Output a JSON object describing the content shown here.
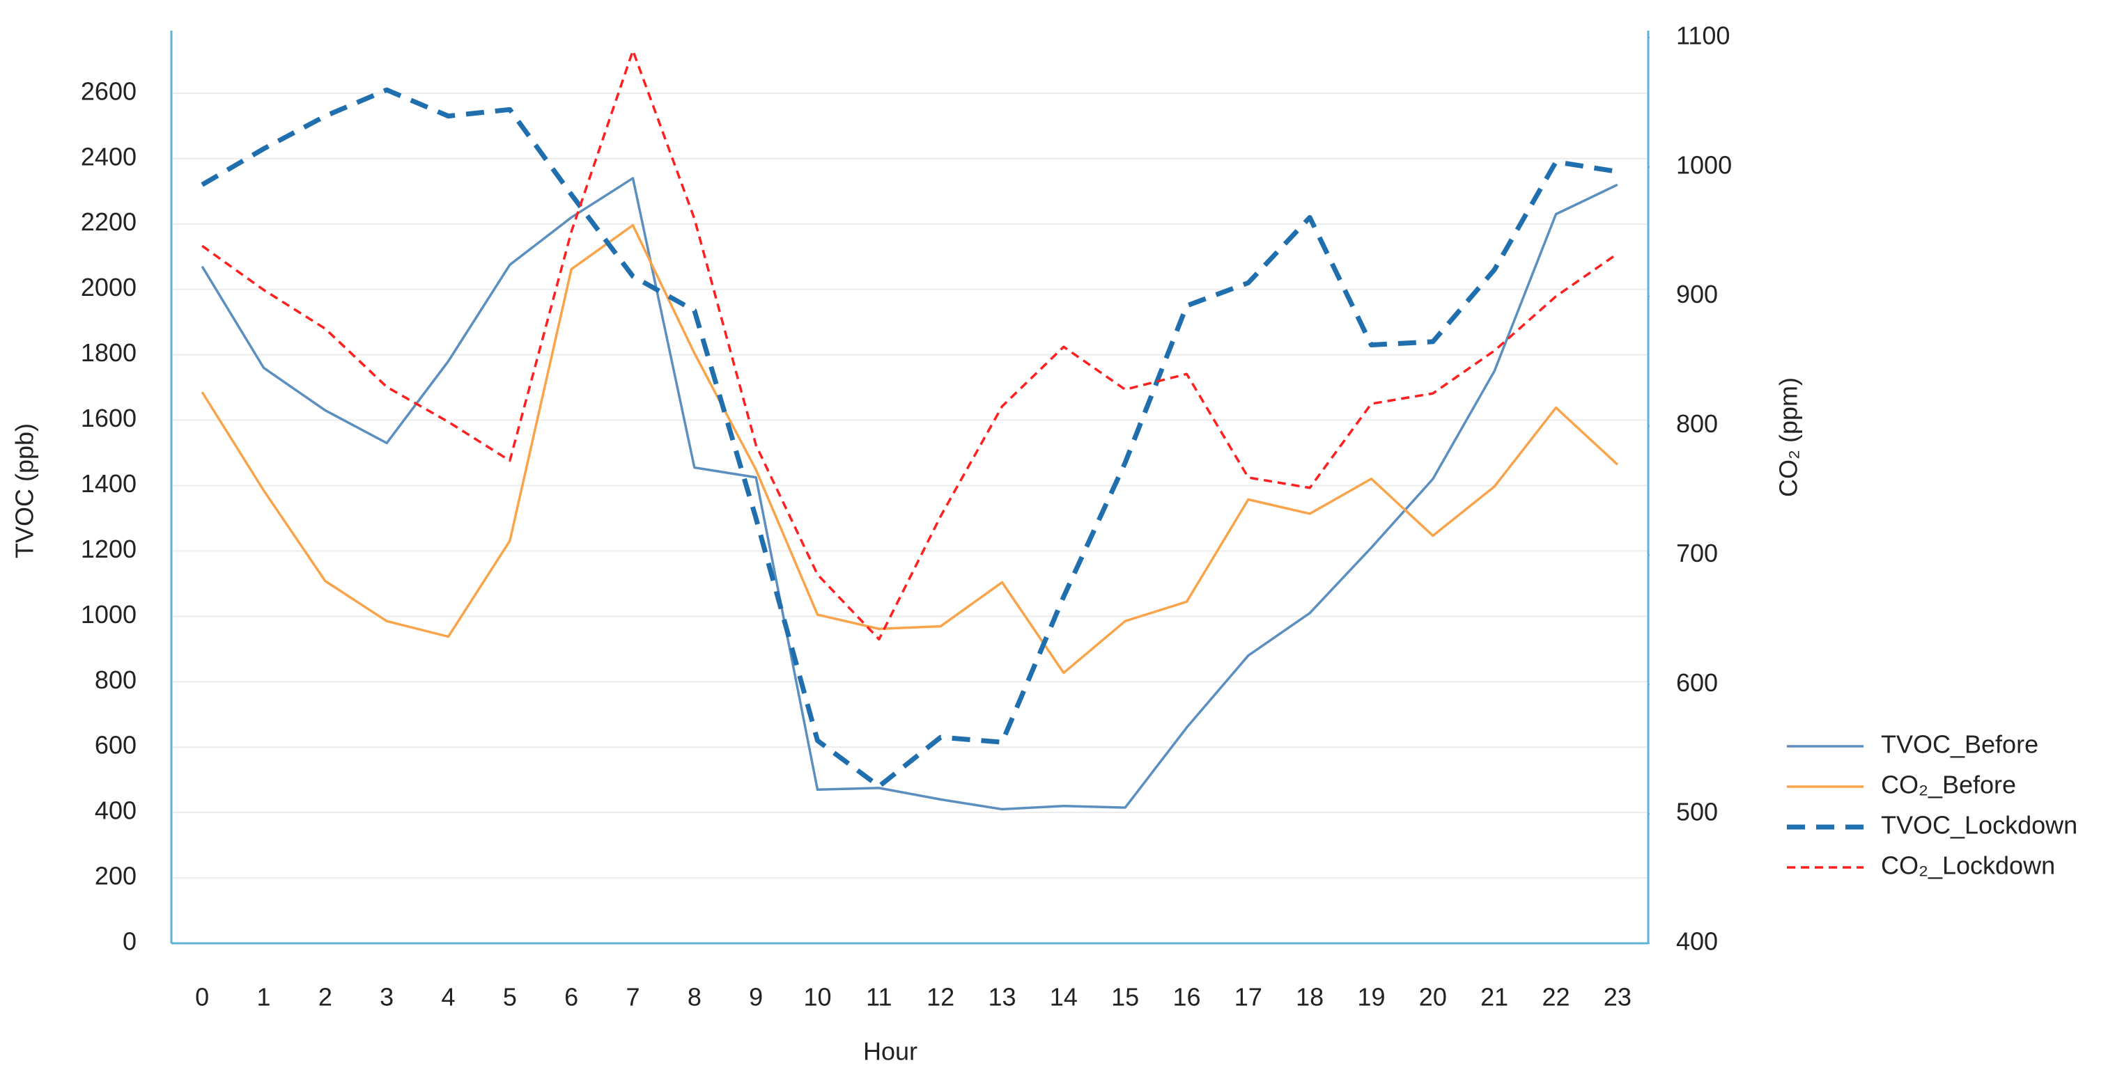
{
  "chart_data": {
    "type": "line",
    "x_label": "Hour",
    "y_label": "TVOC (ppb)",
    "y2_label": "CO₂ (ppm)",
    "categories": [
      "0",
      "1",
      "2",
      "3",
      "4",
      "5",
      "6",
      "7",
      "8",
      "9",
      "10",
      "11",
      "12",
      "13",
      "14",
      "15",
      "16",
      "17",
      "18",
      "19",
      "20",
      "21",
      "22",
      "23"
    ],
    "ylim": [
      0,
      2770
    ],
    "yticks": [
      0,
      200,
      400,
      600,
      800,
      1000,
      1200,
      1400,
      1600,
      1800,
      2000,
      2200,
      2400,
      2600
    ],
    "y2lim": [
      400,
      1100
    ],
    "y2ticks": [
      400,
      500,
      600,
      700,
      800,
      900,
      1000,
      1100
    ],
    "grid": true,
    "legend": "right",
    "series": [
      {
        "name": "TVOC_Before",
        "color": "#5b8fbf",
        "line_style": "solid",
        "values": [
          2070,
          1760,
          1630,
          1530,
          1780,
          2075,
          2220,
          2340,
          1455,
          1425,
          470,
          475,
          440,
          410,
          420,
          415,
          660,
          880,
          1010,
          1210,
          1420,
          1750,
          2230,
          2320
        ]
      },
      {
        "name": "CO₂_Before",
        "color": "#f9a44a",
        "line_style": "solid",
        "axis": "y2",
        "values": [
          826,
          750,
          680,
          649,
          637,
          711,
          921,
          955,
          856,
          766,
          654,
          643,
          645,
          679,
          609,
          649,
          664,
          743,
          732,
          759,
          715,
          753,
          814,
          770
        ]
      },
      {
        "name": "TVOC_Lockdown",
        "color": "#1f6faf",
        "line_style": "dashed",
        "values": [
          2320,
          2430,
          2530,
          2610,
          2530,
          2550,
          2290,
          2040,
          1935,
          1300,
          620,
          480,
          630,
          615,
          1060,
          1470,
          1950,
          2020,
          2220,
          1830,
          1840,
          2060,
          2390,
          2360
        ]
      },
      {
        "name": "CO₂_Lockdown",
        "color": "#ff1f1f",
        "line_style": "dotted",
        "axis": "y2",
        "values": [
          939,
          905,
          875,
          830,
          803,
          773,
          950,
          1090,
          960,
          785,
          685,
          635,
          730,
          815,
          861,
          828,
          840,
          760,
          752,
          817,
          825,
          858,
          900,
          933
        ]
      }
    ]
  }
}
